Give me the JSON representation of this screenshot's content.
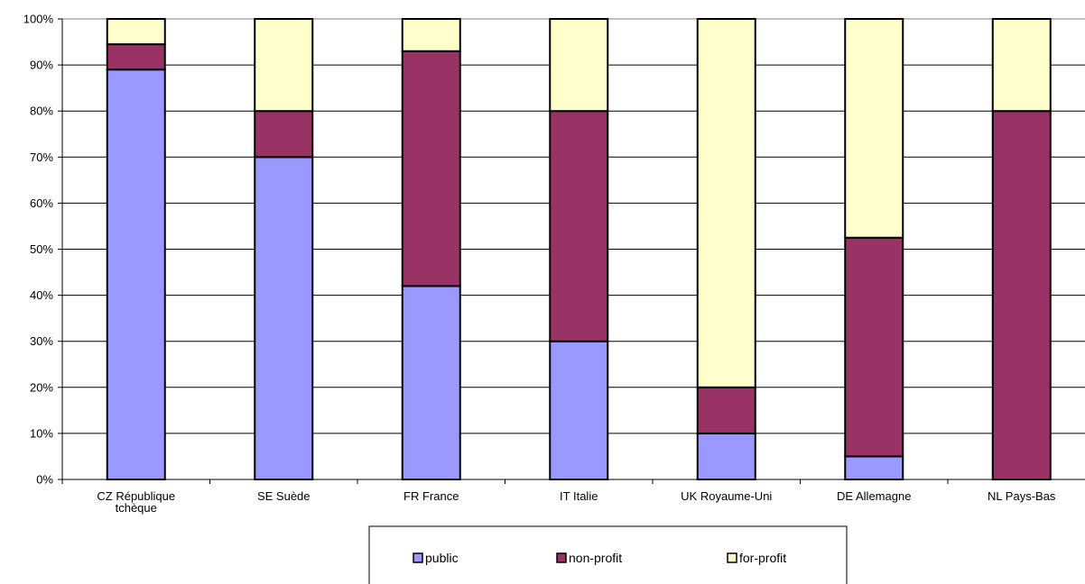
{
  "chart_data": {
    "type": "bar",
    "stacked": true,
    "normalized": true,
    "categories": [
      [
        "CZ République",
        "tchèque"
      ],
      [
        "SE Suède"
      ],
      [
        "FR France"
      ],
      [
        "IT Italie"
      ],
      [
        "UK Royaume-Uni"
      ],
      [
        "DE Allemagne"
      ],
      [
        "NL Pays-Bas"
      ]
    ],
    "series": [
      {
        "name": "public",
        "color": "#9999ff",
        "values": [
          89,
          70,
          42,
          30,
          10,
          5,
          0
        ]
      },
      {
        "name": "non-profit",
        "color": "#993366",
        "values": [
          5.5,
          10,
          51,
          50,
          10,
          47.5,
          80
        ]
      },
      {
        "name": "for-profit",
        "color": "#ffffcc",
        "values": [
          5.5,
          20,
          7,
          20,
          80,
          47.5,
          20
        ]
      }
    ],
    "y_ticks": [
      "0%",
      "10%",
      "20%",
      "30%",
      "40%",
      "50%",
      "60%",
      "70%",
      "80%",
      "90%",
      "100%"
    ],
    "ylim": [
      0,
      100
    ],
    "grid": true,
    "legend_position": "bottom-center",
    "title": "",
    "xlabel": "",
    "ylabel": ""
  }
}
